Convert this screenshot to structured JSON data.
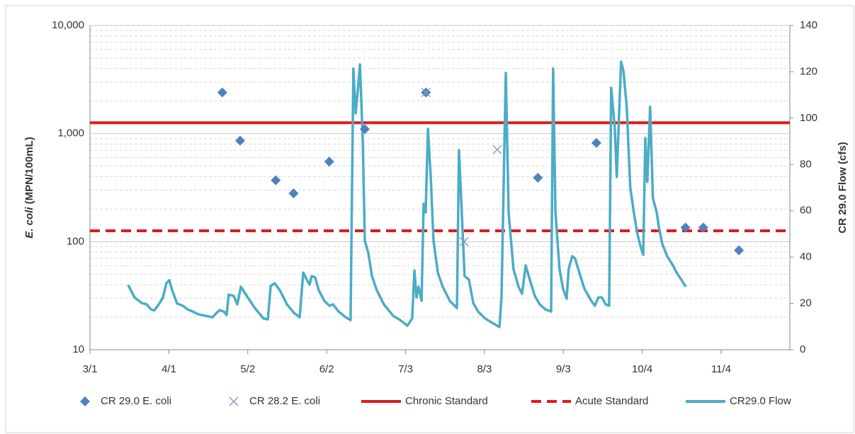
{
  "chart_data": {
    "type": "combo",
    "ylabel_italic": "E. coli",
    "ylabel": " (MPN/100mL)",
    "y2label": "CR 29.0 Flow (cfs)",
    "log_y": true,
    "minor_grid": true,
    "legend": "bottom",
    "xlim": [
      60,
      335
    ],
    "xticks": [
      {
        "value": 60,
        "label": "3/1"
      },
      {
        "value": 91,
        "label": "4/1"
      },
      {
        "value": 122,
        "label": "5/2"
      },
      {
        "value": 153,
        "label": "6/2"
      },
      {
        "value": 184,
        "label": "7/3"
      },
      {
        "value": 215,
        "label": "8/3"
      },
      {
        "value": 246,
        "label": "9/3"
      },
      {
        "value": 277,
        "label": "10/4"
      },
      {
        "value": 308,
        "label": "11/4"
      }
    ],
    "ylim": [
      10,
      10000
    ],
    "yticks": [
      10,
      100,
      {
        "value": 1000,
        "label": "1,000"
      },
      {
        "value": 10000,
        "label": "10,000"
      }
    ],
    "y2lim": [
      0,
      140
    ],
    "y2ticks": [
      0,
      20,
      40,
      60,
      80,
      100,
      120,
      140
    ],
    "series": [
      {
        "name": "CR 29.0 E. coli",
        "type": "scatter",
        "marker": "diamond",
        "color": "#4f81bd",
        "x": [
          112,
          119,
          133,
          140,
          154,
          168,
          192,
          236,
          259,
          294,
          301,
          315
        ],
        "values": [
          2400,
          860,
          370,
          280,
          550,
          1100,
          2400,
          390,
          820,
          135,
          135,
          83
        ]
      },
      {
        "name": "CR 28.2 E. coli",
        "type": "scatter",
        "marker": "x",
        "color": "#8e9bbf",
        "x": [
          192,
          207,
          220
        ],
        "values": [
          2400,
          100,
          710
        ]
      },
      {
        "name": "Chronic Standard",
        "type": "hline",
        "dash": false,
        "color": "#e0191b",
        "value": 1260
      },
      {
        "name": "Acute Standard",
        "type": "hline",
        "dash": true,
        "color": "#e0191b",
        "value": 126
      },
      {
        "name": "CR29.0 Flow",
        "type": "line",
        "axis": "y2",
        "color": "#4bacc6",
        "x": [
          75,
          77.5,
          80.3,
          82.3,
          84,
          85.3,
          87.3,
          88.7,
          90,
          91.2,
          92.3,
          94.2,
          96.5,
          98.4,
          100.4,
          102.6,
          105.4,
          108.1,
          109.5,
          110.9,
          112.6,
          113.7,
          114.5,
          116.5,
          117.9,
          119.3,
          122,
          124.8,
          128.2,
          129.9,
          131,
          132.6,
          134.6,
          137.4,
          140.2,
          142.4,
          143.8,
          145.2,
          146.3,
          147.1,
          148.5,
          149.9,
          152.1,
          154.1,
          155.5,
          157.7,
          160.5,
          162.4,
          163.5,
          164.4,
          165.2,
          166.1,
          167.2,
          168,
          169.4,
          170.8,
          172.7,
          175.5,
          179.1,
          181.9,
          184.7,
          186.6,
          187.5,
          188.3,
          189.1,
          190.3,
          191.1,
          191.9,
          192.8,
          193.9,
          195,
          196.7,
          198.6,
          201.4,
          204.2,
          205,
          206.1,
          207.2,
          208.9,
          210.6,
          212.5,
          215.3,
          218.1,
          220.9,
          221.7,
          223.4,
          224.5,
          226.4,
          228.4,
          229.8,
          231.2,
          232.8,
          234.8,
          236.7,
          239,
          241.2,
          242,
          242.9,
          244.5,
          245.9,
          247.3,
          248.1,
          249.5,
          250.6,
          252.3,
          254.3,
          257,
          258.4,
          259.8,
          261.2,
          262.6,
          264,
          264.8,
          266.2,
          267,
          267.9,
          268.7,
          269.6,
          270.9,
          272.3,
          273.7,
          275.1,
          276.5,
          277.4,
          278.2,
          279,
          280.1,
          281.2,
          282.7,
          283.5,
          284.9,
          286.8,
          289.1,
          290.5,
          291.8,
          294.1
        ],
        "values": [
          28,
          22.6,
          20.2,
          19.6,
          17.4,
          17,
          20,
          22.6,
          28.7,
          30,
          25.7,
          20,
          19,
          17.4,
          16.5,
          15.3,
          14.7,
          14,
          15.6,
          17.1,
          16.5,
          15,
          23.8,
          23.2,
          19.6,
          27.2,
          22.6,
          18,
          13.5,
          13.1,
          27.5,
          28.7,
          25.7,
          19.6,
          15.9,
          14,
          33.3,
          30.3,
          28.1,
          31.8,
          31.2,
          25.7,
          21.1,
          19,
          19.6,
          16.5,
          14,
          12.8,
          121.4,
          102.1,
          111.3,
          123.2,
          89.9,
          47.1,
          41.6,
          31.8,
          25.7,
          19.6,
          14.7,
          12.8,
          10.4,
          13.5,
          34.2,
          22.6,
          27.2,
          21.1,
          63,
          59.3,
          95.4,
          74.6,
          47.1,
          33.3,
          27.2,
          21.1,
          18,
          86.2,
          59.3,
          31.8,
          30.3,
          20.2,
          16.5,
          13.5,
          11.6,
          9.8,
          22.6,
          119.5,
          59.3,
          34.9,
          27.2,
          24.2,
          36.4,
          30.3,
          23.2,
          19.6,
          17.4,
          16.5,
          121.4,
          59.3,
          34.9,
          26.3,
          22,
          34.9,
          40.4,
          39.4,
          33.3,
          26.3,
          21.1,
          19,
          22.6,
          22.6,
          19.6,
          19,
          113.1,
          96,
          74.6,
          101.5,
          124.4,
          120.5,
          105.2,
          70,
          59.3,
          50.1,
          44,
          41,
          91.4,
          72.5,
          104.9,
          65.4,
          59.3,
          53.2,
          45.6,
          40.4,
          36.4,
          33.3,
          31.2,
          27.2
        ]
      }
    ]
  }
}
